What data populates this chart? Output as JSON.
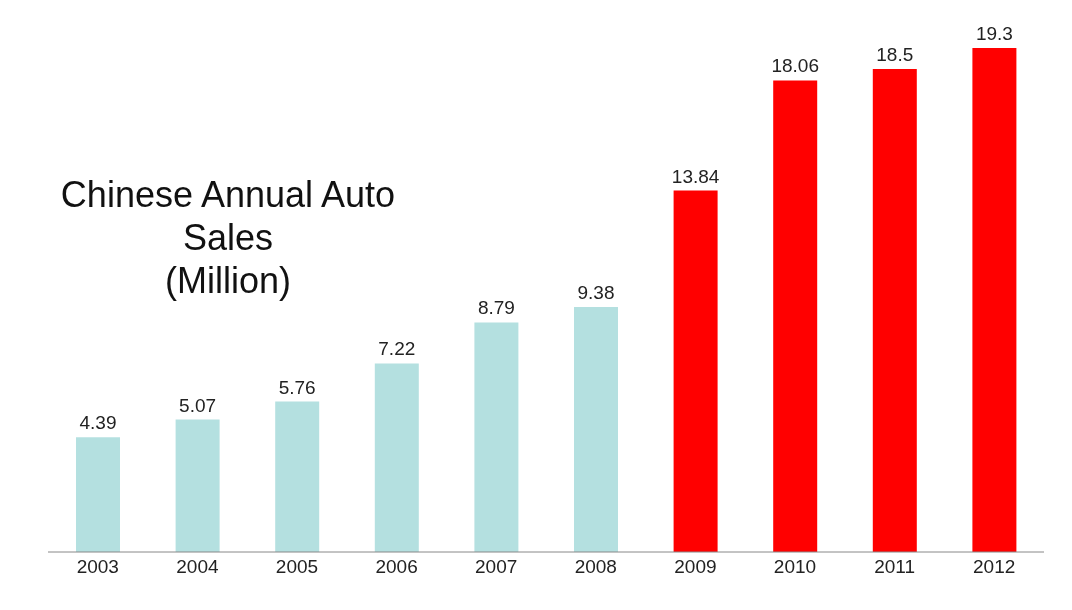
{
  "chart_data": {
    "type": "bar",
    "title": "Chinese Annual Auto Sales",
    "subtitle": "(Million)",
    "categories": [
      "2003",
      "2004",
      "2005",
      "2006",
      "2007",
      "2008",
      "2009",
      "2010",
      "2011",
      "2012"
    ],
    "values": [
      4.39,
      5.07,
      5.76,
      7.22,
      8.79,
      9.38,
      13.84,
      18.06,
      18.5,
      19.3
    ],
    "colors": [
      "#b4e0e0",
      "#b4e0e0",
      "#b4e0e0",
      "#b4e0e0",
      "#b4e0e0",
      "#b4e0e0",
      "#ff0000",
      "#ff0000",
      "#ff0000",
      "#ff0000"
    ],
    "data_labels": true,
    "grid": false,
    "legend": false
  }
}
